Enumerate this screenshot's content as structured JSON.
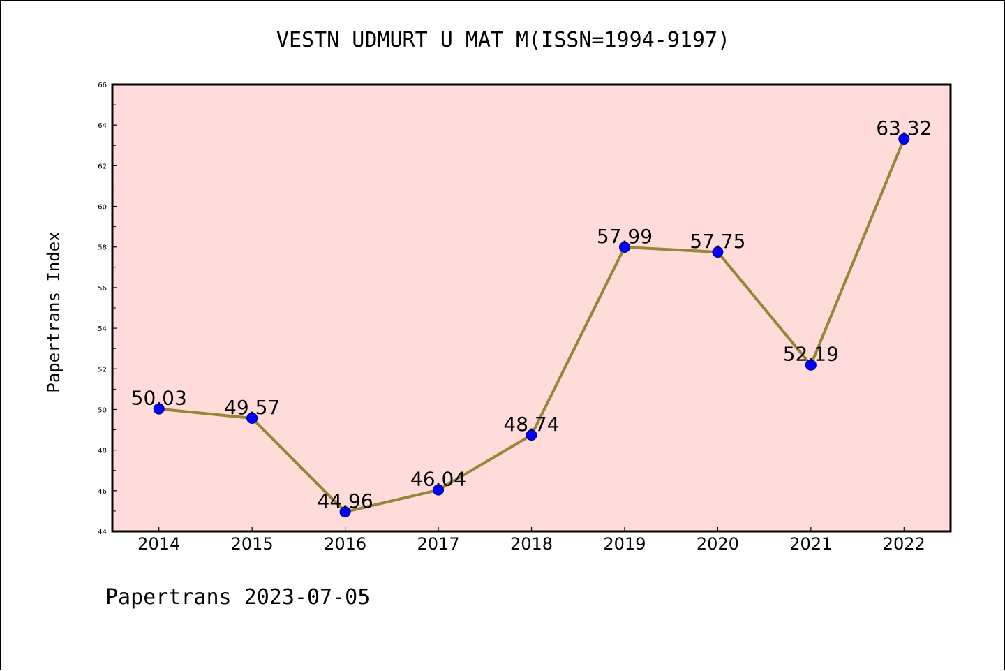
{
  "chart_data": {
    "type": "line",
    "title": "VESTN UDMURT U MAT M(ISSN=1994-9197)",
    "ylabel": "Papertrans Index",
    "xlabel": "",
    "footer": "Papertrans 2023-07-05",
    "categories": [
      "2014",
      "2015",
      "2016",
      "2017",
      "2018",
      "2019",
      "2020",
      "2021",
      "2022"
    ],
    "values": [
      50.03,
      49.57,
      44.96,
      46.04,
      48.74,
      57.99,
      57.75,
      52.19,
      63.32
    ],
    "value_labels": [
      "50.03",
      "49.57",
      "44.96",
      "46.04",
      "48.74",
      "57.99",
      "57.75",
      "52.19",
      "63.32"
    ],
    "ylim": [
      44,
      66
    ],
    "yticks": [
      "44",
      "46",
      "48",
      "50",
      "52",
      "54",
      "56",
      "58",
      "60",
      "62",
      "64",
      "66"
    ],
    "grid": false,
    "legend": "none",
    "colors": {
      "plot_background": "#ffdcd9",
      "line": "#978538",
      "marker": "#0000ff",
      "axis": "#000000"
    }
  }
}
